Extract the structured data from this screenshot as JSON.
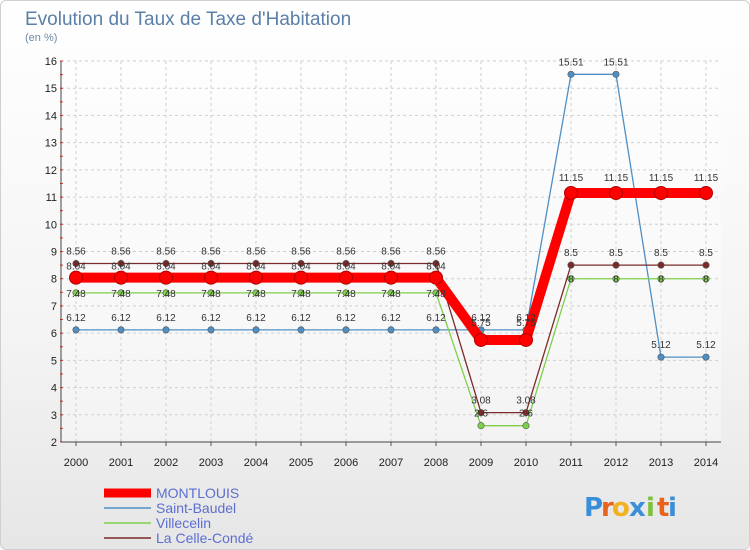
{
  "chart_data": {
    "type": "line",
    "title": "Evolution du Taux de Taxe d'Habitation",
    "subtitle": "(en %)",
    "x": [
      "2000",
      "2001",
      "2002",
      "2003",
      "2004",
      "2005",
      "2006",
      "2007",
      "2008",
      "2009",
      "2010",
      "2011",
      "2012",
      "2013",
      "2014"
    ],
    "ylim": [
      2,
      16
    ],
    "yticks": [
      2,
      3,
      4,
      5,
      6,
      7,
      8,
      9,
      10,
      11,
      12,
      13,
      14,
      15,
      16
    ],
    "grid": true,
    "legend_position": "bottom-left",
    "series": [
      {
        "name": "MONTLOUIS",
        "color": "#ff0000",
        "values": [
          8.04,
          8.04,
          8.04,
          8.04,
          8.04,
          8.04,
          8.04,
          8.04,
          8.04,
          5.75,
          5.75,
          11.15,
          11.15,
          11.15,
          11.15
        ],
        "labels": [
          "8.04",
          "8.04",
          "8.04",
          "8.04",
          "8.04",
          "8.04",
          "8.04",
          "8.04",
          "8.04",
          "5.75",
          "5.75",
          "11.15",
          "11.15",
          "11.15",
          "11.15"
        ]
      },
      {
        "name": "Saint-Baudel",
        "color": "#4f8fc4",
        "values": [
          6.12,
          6.12,
          6.12,
          6.12,
          6.12,
          6.12,
          6.12,
          6.12,
          6.12,
          6.12,
          6.12,
          15.51,
          15.51,
          5.12,
          5.12
        ],
        "labels": [
          "6.12",
          "6.12",
          "6.12",
          "6.12",
          "6.12",
          "6.12",
          "6.12",
          "6.12",
          "6.12",
          "6.12",
          "6.12",
          "15.51",
          "15.51",
          "5.12",
          "5.12"
        ]
      },
      {
        "name": "Villecelin",
        "color": "#7ed04a",
        "values": [
          7.48,
          7.48,
          7.48,
          7.48,
          7.48,
          7.48,
          7.48,
          7.48,
          7.48,
          2.6,
          2.6,
          8,
          8,
          8,
          8
        ],
        "labels": [
          "7.48",
          "7.48",
          "7.48",
          "7.48",
          "7.48",
          "7.48",
          "7.48",
          "7.48",
          "7.48",
          "2.6",
          "2.6",
          "8",
          "8",
          "8",
          "8"
        ]
      },
      {
        "name": "La Celle-Condé",
        "color": "#7a2a2a",
        "values": [
          8.56,
          8.56,
          8.56,
          8.56,
          8.56,
          8.56,
          8.56,
          8.56,
          8.56,
          3.08,
          3.08,
          8.5,
          8.5,
          8.5,
          8.5
        ],
        "labels": [
          "8.56",
          "8.56",
          "8.56",
          "8.56",
          "8.56",
          "8.56",
          "8.56",
          "8.56",
          "8.56",
          "3.08",
          "3.08",
          "8.5",
          "8.5",
          "8.5",
          "8.5"
        ]
      }
    ]
  },
  "brand": {
    "letters": [
      "P",
      "r",
      "o",
      "x",
      "i",
      "t",
      "i"
    ],
    "colors": [
      "#3a8fd8",
      "#e8641e",
      "#f0b21e",
      "#3a8fd8",
      "#7ec23a",
      "#e8641e",
      "#3a8fd8"
    ]
  }
}
